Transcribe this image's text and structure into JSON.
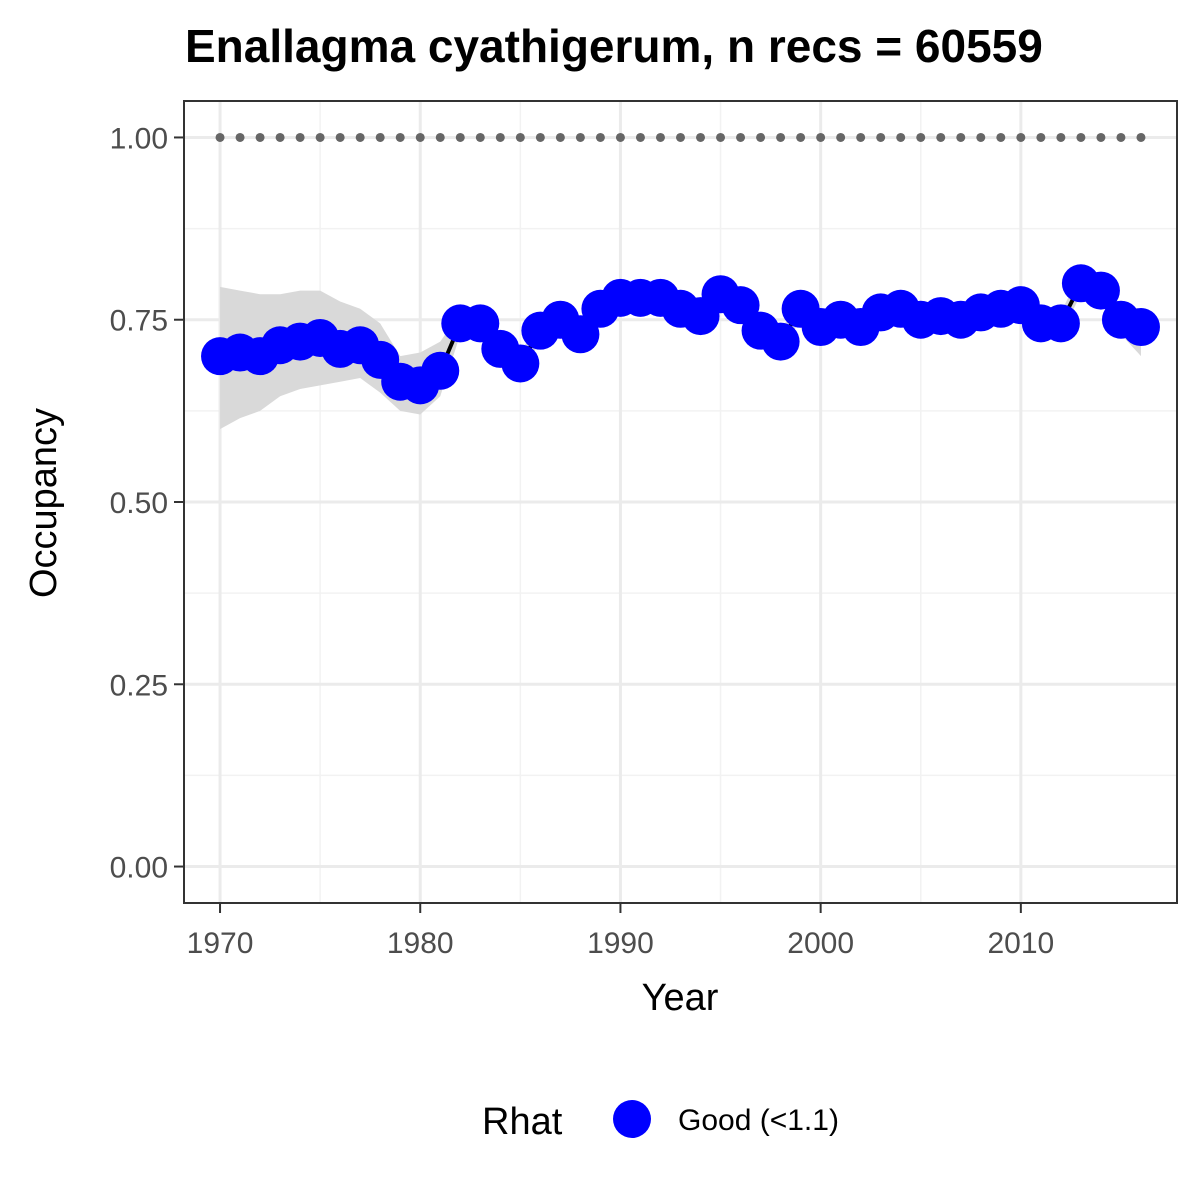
{
  "chart_data": {
    "type": "line",
    "title": "Enallagma cyathigerum, n recs = 60559",
    "xlabel": "Year",
    "ylabel": "Occupancy",
    "xlim": [
      1968.2,
      2017.8
    ],
    "ylim": [
      -0.05,
      1.05
    ],
    "x_ticks": [
      1970,
      1980,
      1990,
      2000,
      2010
    ],
    "x_tick_labels": [
      "1970",
      "1980",
      "1990",
      "2000",
      "2010"
    ],
    "y_ticks": [
      0,
      0.25,
      0.5,
      0.75,
      1.0
    ],
    "y_tick_labels": [
      "0.00",
      "0.25",
      "0.50",
      "0.75",
      "1.00"
    ],
    "grid": true,
    "legend": {
      "title": "Rhat",
      "position": "bottom",
      "entries": [
        {
          "label": "Good (<1.1)",
          "color": "#0000ff"
        }
      ]
    },
    "series": [
      {
        "type": "points-line",
        "color": "#0000ff",
        "line_color": "#000000",
        "x": [
          1970,
          1971,
          1972,
          1973,
          1974,
          1975,
          1976,
          1977,
          1978,
          1979,
          1980,
          1981,
          1982,
          1983,
          1984,
          1985,
          1986,
          1987,
          1988,
          1989,
          1990,
          1991,
          1992,
          1993,
          1994,
          1995,
          1996,
          1997,
          1998,
          1999,
          2000,
          2001,
          2002,
          2003,
          2004,
          2005,
          2006,
          2007,
          2008,
          2009,
          2010,
          2011,
          2012,
          2013,
          2014,
          2015,
          2016
        ],
        "y": [
          0.7,
          0.705,
          0.7,
          0.715,
          0.72,
          0.725,
          0.71,
          0.715,
          0.695,
          0.665,
          0.66,
          0.68,
          0.745,
          0.745,
          0.71,
          0.69,
          0.735,
          0.75,
          0.73,
          0.765,
          0.78,
          0.78,
          0.78,
          0.765,
          0.755,
          0.785,
          0.77,
          0.735,
          0.72,
          0.765,
          0.74,
          0.75,
          0.74,
          0.76,
          0.765,
          0.75,
          0.755,
          0.75,
          0.76,
          0.765,
          0.77,
          0.745,
          0.745,
          0.8,
          0.79,
          0.75,
          0.74
        ]
      },
      {
        "type": "ribbon",
        "color": "#d9d9d9",
        "x": [
          1970,
          1971,
          1972,
          1973,
          1974,
          1975,
          1976,
          1977,
          1978,
          1979,
          1980,
          1981,
          1982,
          1983,
          1984,
          1985,
          1986,
          1987,
          1988,
          1989,
          1990,
          1991,
          1992,
          1993,
          1994,
          1995,
          1996,
          1997,
          1998,
          1999,
          2000,
          2001,
          2002,
          2003,
          2004,
          2005,
          2006,
          2007,
          2008,
          2009,
          2010,
          2011,
          2012,
          2013,
          2014,
          2015,
          2016
        ],
        "lower": [
          0.6,
          0.615,
          0.625,
          0.645,
          0.655,
          0.66,
          0.665,
          0.67,
          0.65,
          0.625,
          0.62,
          0.645,
          0.73,
          0.73,
          0.695,
          0.675,
          0.72,
          0.735,
          0.715,
          0.75,
          0.765,
          0.765,
          0.765,
          0.75,
          0.74,
          0.77,
          0.755,
          0.72,
          0.705,
          0.75,
          0.725,
          0.735,
          0.725,
          0.745,
          0.75,
          0.735,
          0.74,
          0.735,
          0.745,
          0.75,
          0.755,
          0.73,
          0.73,
          0.785,
          0.775,
          0.73,
          0.7
        ],
        "upper": [
          0.795,
          0.79,
          0.785,
          0.785,
          0.79,
          0.79,
          0.775,
          0.765,
          0.745,
          0.7,
          0.705,
          0.72,
          0.76,
          0.76,
          0.725,
          0.705,
          0.75,
          0.765,
          0.745,
          0.78,
          0.795,
          0.795,
          0.795,
          0.78,
          0.77,
          0.8,
          0.785,
          0.75,
          0.735,
          0.78,
          0.755,
          0.765,
          0.755,
          0.775,
          0.78,
          0.765,
          0.77,
          0.765,
          0.775,
          0.78,
          0.785,
          0.76,
          0.76,
          0.815,
          0.805,
          0.77,
          0.765
        ]
      },
      {
        "type": "dotted-reference",
        "color": "#666666",
        "x": [
          1970,
          2016
        ],
        "y": [
          1.0,
          1.0
        ]
      }
    ]
  }
}
